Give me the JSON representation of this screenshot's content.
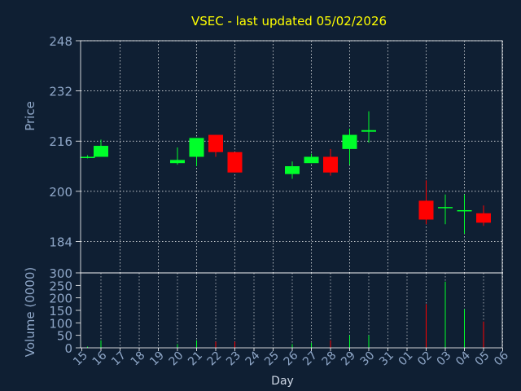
{
  "chart_data": {
    "type": "candlestick",
    "title": "VSEC - last updated 05/02/2026",
    "xlabel": "Day",
    "colors": {
      "background": "#0f1f33",
      "title": "#ffff00",
      "axis_text": "#8fa7c8",
      "grid": "#ffffff",
      "up": "#00ff2a",
      "down": "#ff0000"
    },
    "x_ticks": [
      "15",
      "16",
      "17",
      "18",
      "19",
      "20",
      "21",
      "22",
      "23",
      "24",
      "25",
      "26",
      "27",
      "28",
      "29",
      "30",
      "31",
      "01",
      "02",
      "03",
      "04",
      "05",
      "06"
    ],
    "price": {
      "ylabel": "Price",
      "ylim": [
        174,
        248
      ],
      "ticks": [
        "248",
        "232",
        "216",
        "200",
        "184"
      ],
      "tick_values": [
        248,
        232,
        216,
        200,
        184
      ],
      "grid": true
    },
    "volume": {
      "ylabel": "Volume (0000)",
      "ylim": [
        0,
        300
      ],
      "ticks": [
        "300",
        "250",
        "200",
        "150",
        "100",
        "50",
        "0"
      ],
      "tick_values": [
        300,
        250,
        200,
        150,
        100,
        50,
        0
      ]
    },
    "candles": [
      {
        "x": 0.3,
        "open": 211.0,
        "close": 211.0,
        "high": 211.5,
        "low": 210.5,
        "volume": 5
      },
      {
        "x": 1,
        "open": 211.0,
        "close": 214.5,
        "high": 216.5,
        "low": 211.0,
        "volume": 30
      },
      {
        "x": 5,
        "open": 209.0,
        "close": 210.0,
        "high": 214.0,
        "low": 208.5,
        "volume": 15
      },
      {
        "x": 6,
        "open": 211.0,
        "close": 217.0,
        "high": 217.0,
        "low": 208.0,
        "volume": 30
      },
      {
        "x": 7,
        "open": 218.0,
        "close": 212.5,
        "high": 218.0,
        "low": 211.0,
        "volume": 25
      },
      {
        "x": 8,
        "open": 212.5,
        "close": 206.0,
        "high": 212.5,
        "low": 206.0,
        "volume": 25
      },
      {
        "x": 11,
        "open": 205.5,
        "close": 208.0,
        "high": 209.5,
        "low": 204.0,
        "volume": 15
      },
      {
        "x": 12,
        "open": 209.0,
        "close": 211.0,
        "high": 212.0,
        "low": 209.0,
        "volume": 20
      },
      {
        "x": 13,
        "open": 211.0,
        "close": 206.0,
        "high": 213.5,
        "low": 205.0,
        "volume": 30
      },
      {
        "x": 14,
        "open": 213.5,
        "close": 218.0,
        "high": 220.0,
        "low": 208.5,
        "volume": 50
      },
      {
        "x": 15,
        "open": 219.0,
        "close": 219.5,
        "high": 225.5,
        "low": 215.5,
        "volume": 50
      },
      {
        "x": 18,
        "open": 197.0,
        "close": 191.0,
        "high": 203.5,
        "low": 189.5,
        "volume": 175
      },
      {
        "x": 19,
        "open": 195.0,
        "close": 195.0,
        "high": 199.0,
        "low": 189.5,
        "volume": 265
      },
      {
        "x": 20,
        "open": 194.0,
        "close": 194.0,
        "high": 199.0,
        "low": 186.5,
        "volume": 155
      },
      {
        "x": 21,
        "open": 193.0,
        "close": 190.0,
        "high": 195.5,
        "low": 189.0,
        "volume": 105
      }
    ]
  }
}
